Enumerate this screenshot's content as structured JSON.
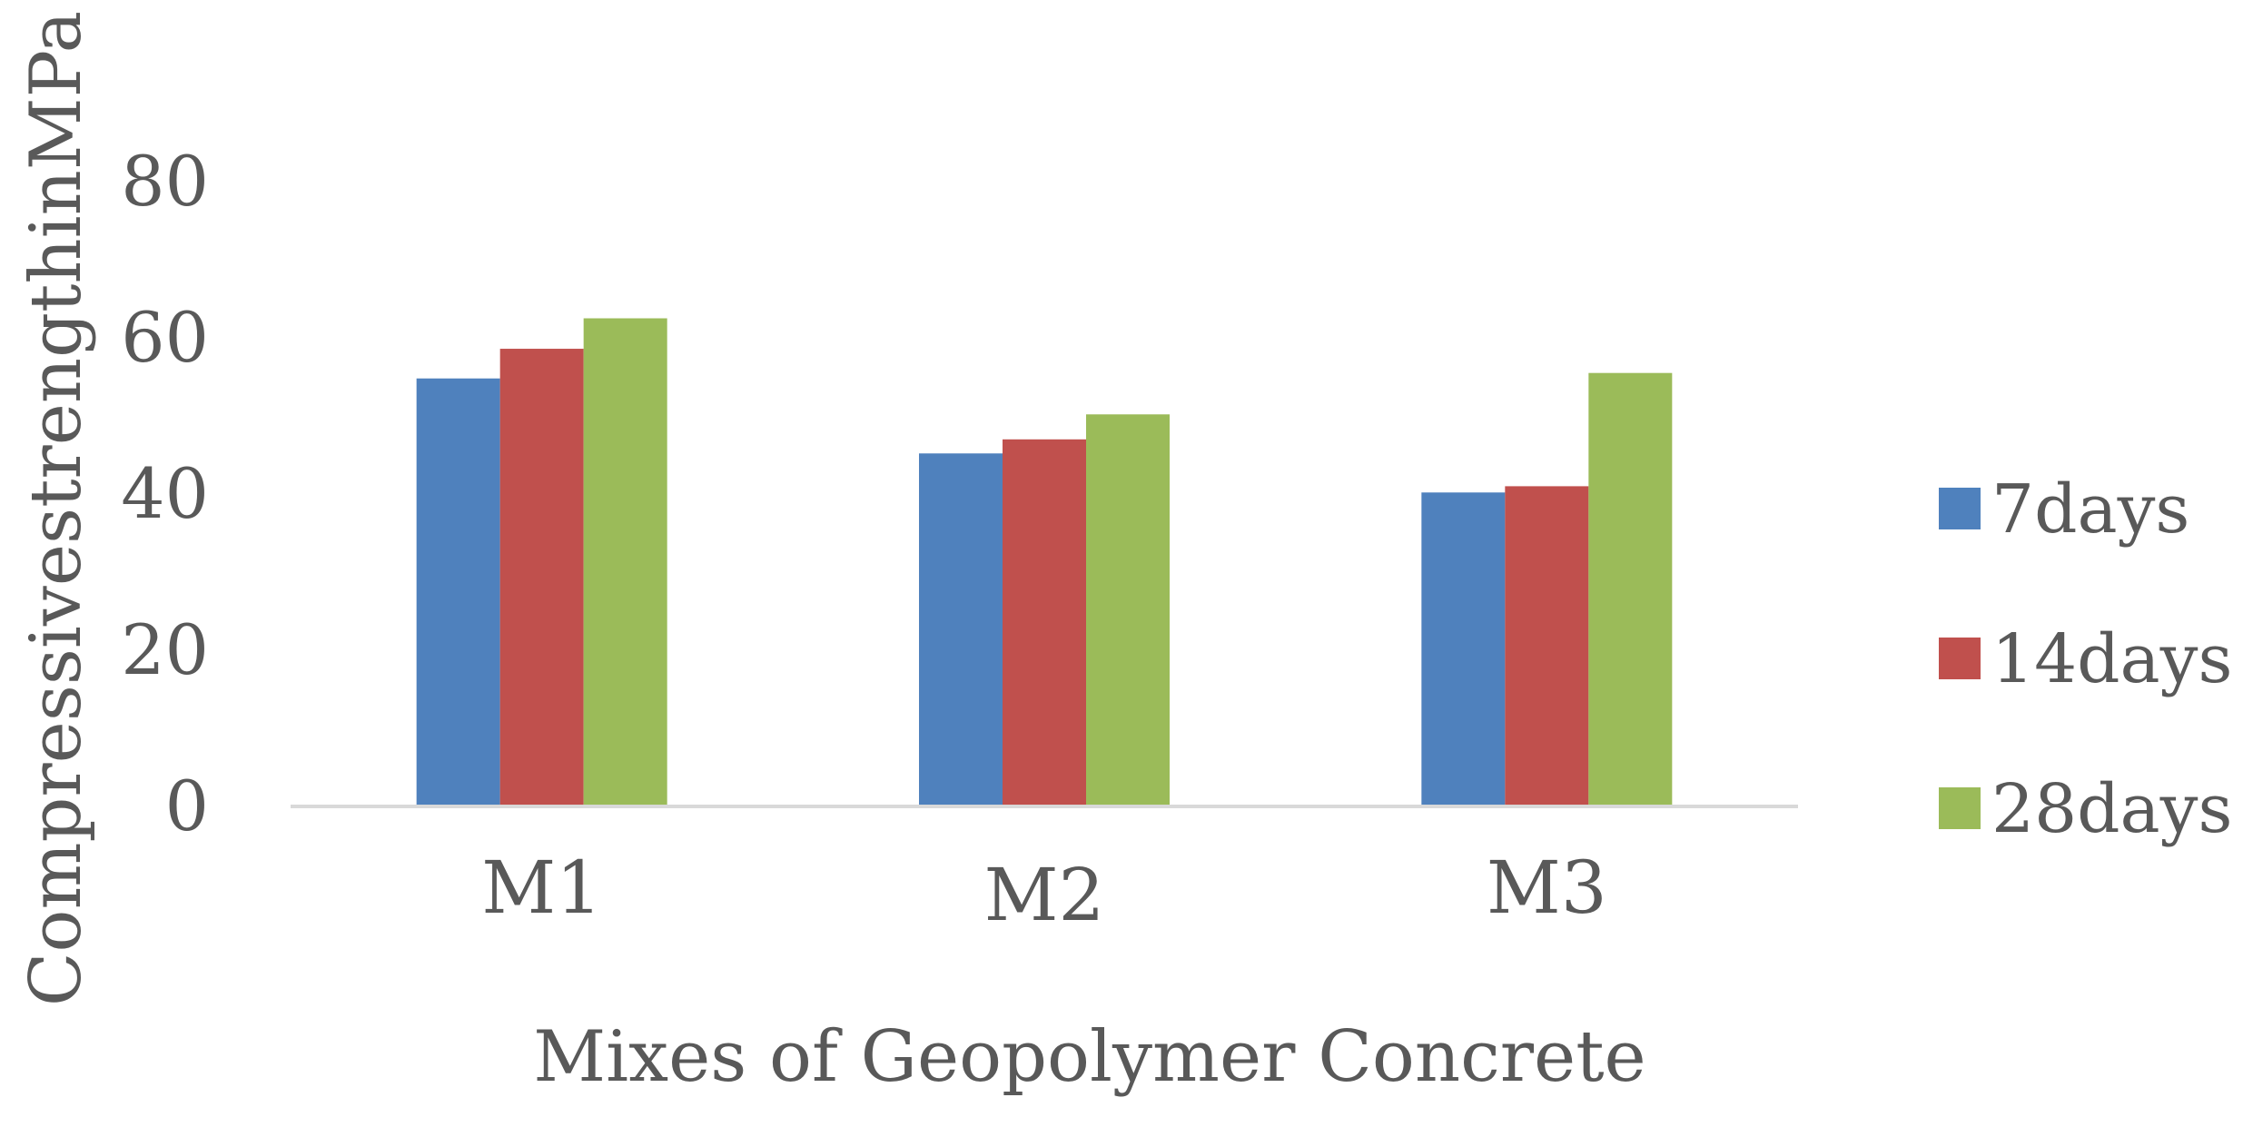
{
  "chart_data": {
    "type": "bar",
    "title": "",
    "xlabel": "Mixes of Geopolymer Concrete",
    "ylabel": "CompressivestrengthinMPa",
    "categories": [
      "M1",
      "M2",
      "M3"
    ],
    "series": [
      {
        "name": "7days",
        "color": "#4F81BD",
        "values": [
          54.8,
          45.2,
          40.2
        ]
      },
      {
        "name": "14days",
        "color": "#C0504D",
        "values": [
          58.6,
          47.0,
          41.0
        ]
      },
      {
        "name": "28days",
        "color": "#9BBB59",
        "values": [
          62.5,
          50.2,
          55.5
        ]
      }
    ],
    "ylim": [
      0,
      80
    ],
    "yticks": [
      "0",
      "20",
      "40",
      "60",
      "80"
    ],
    "yticks_values": [
      0,
      20,
      40,
      60,
      80
    ],
    "grid": false,
    "legend_position": "right"
  }
}
